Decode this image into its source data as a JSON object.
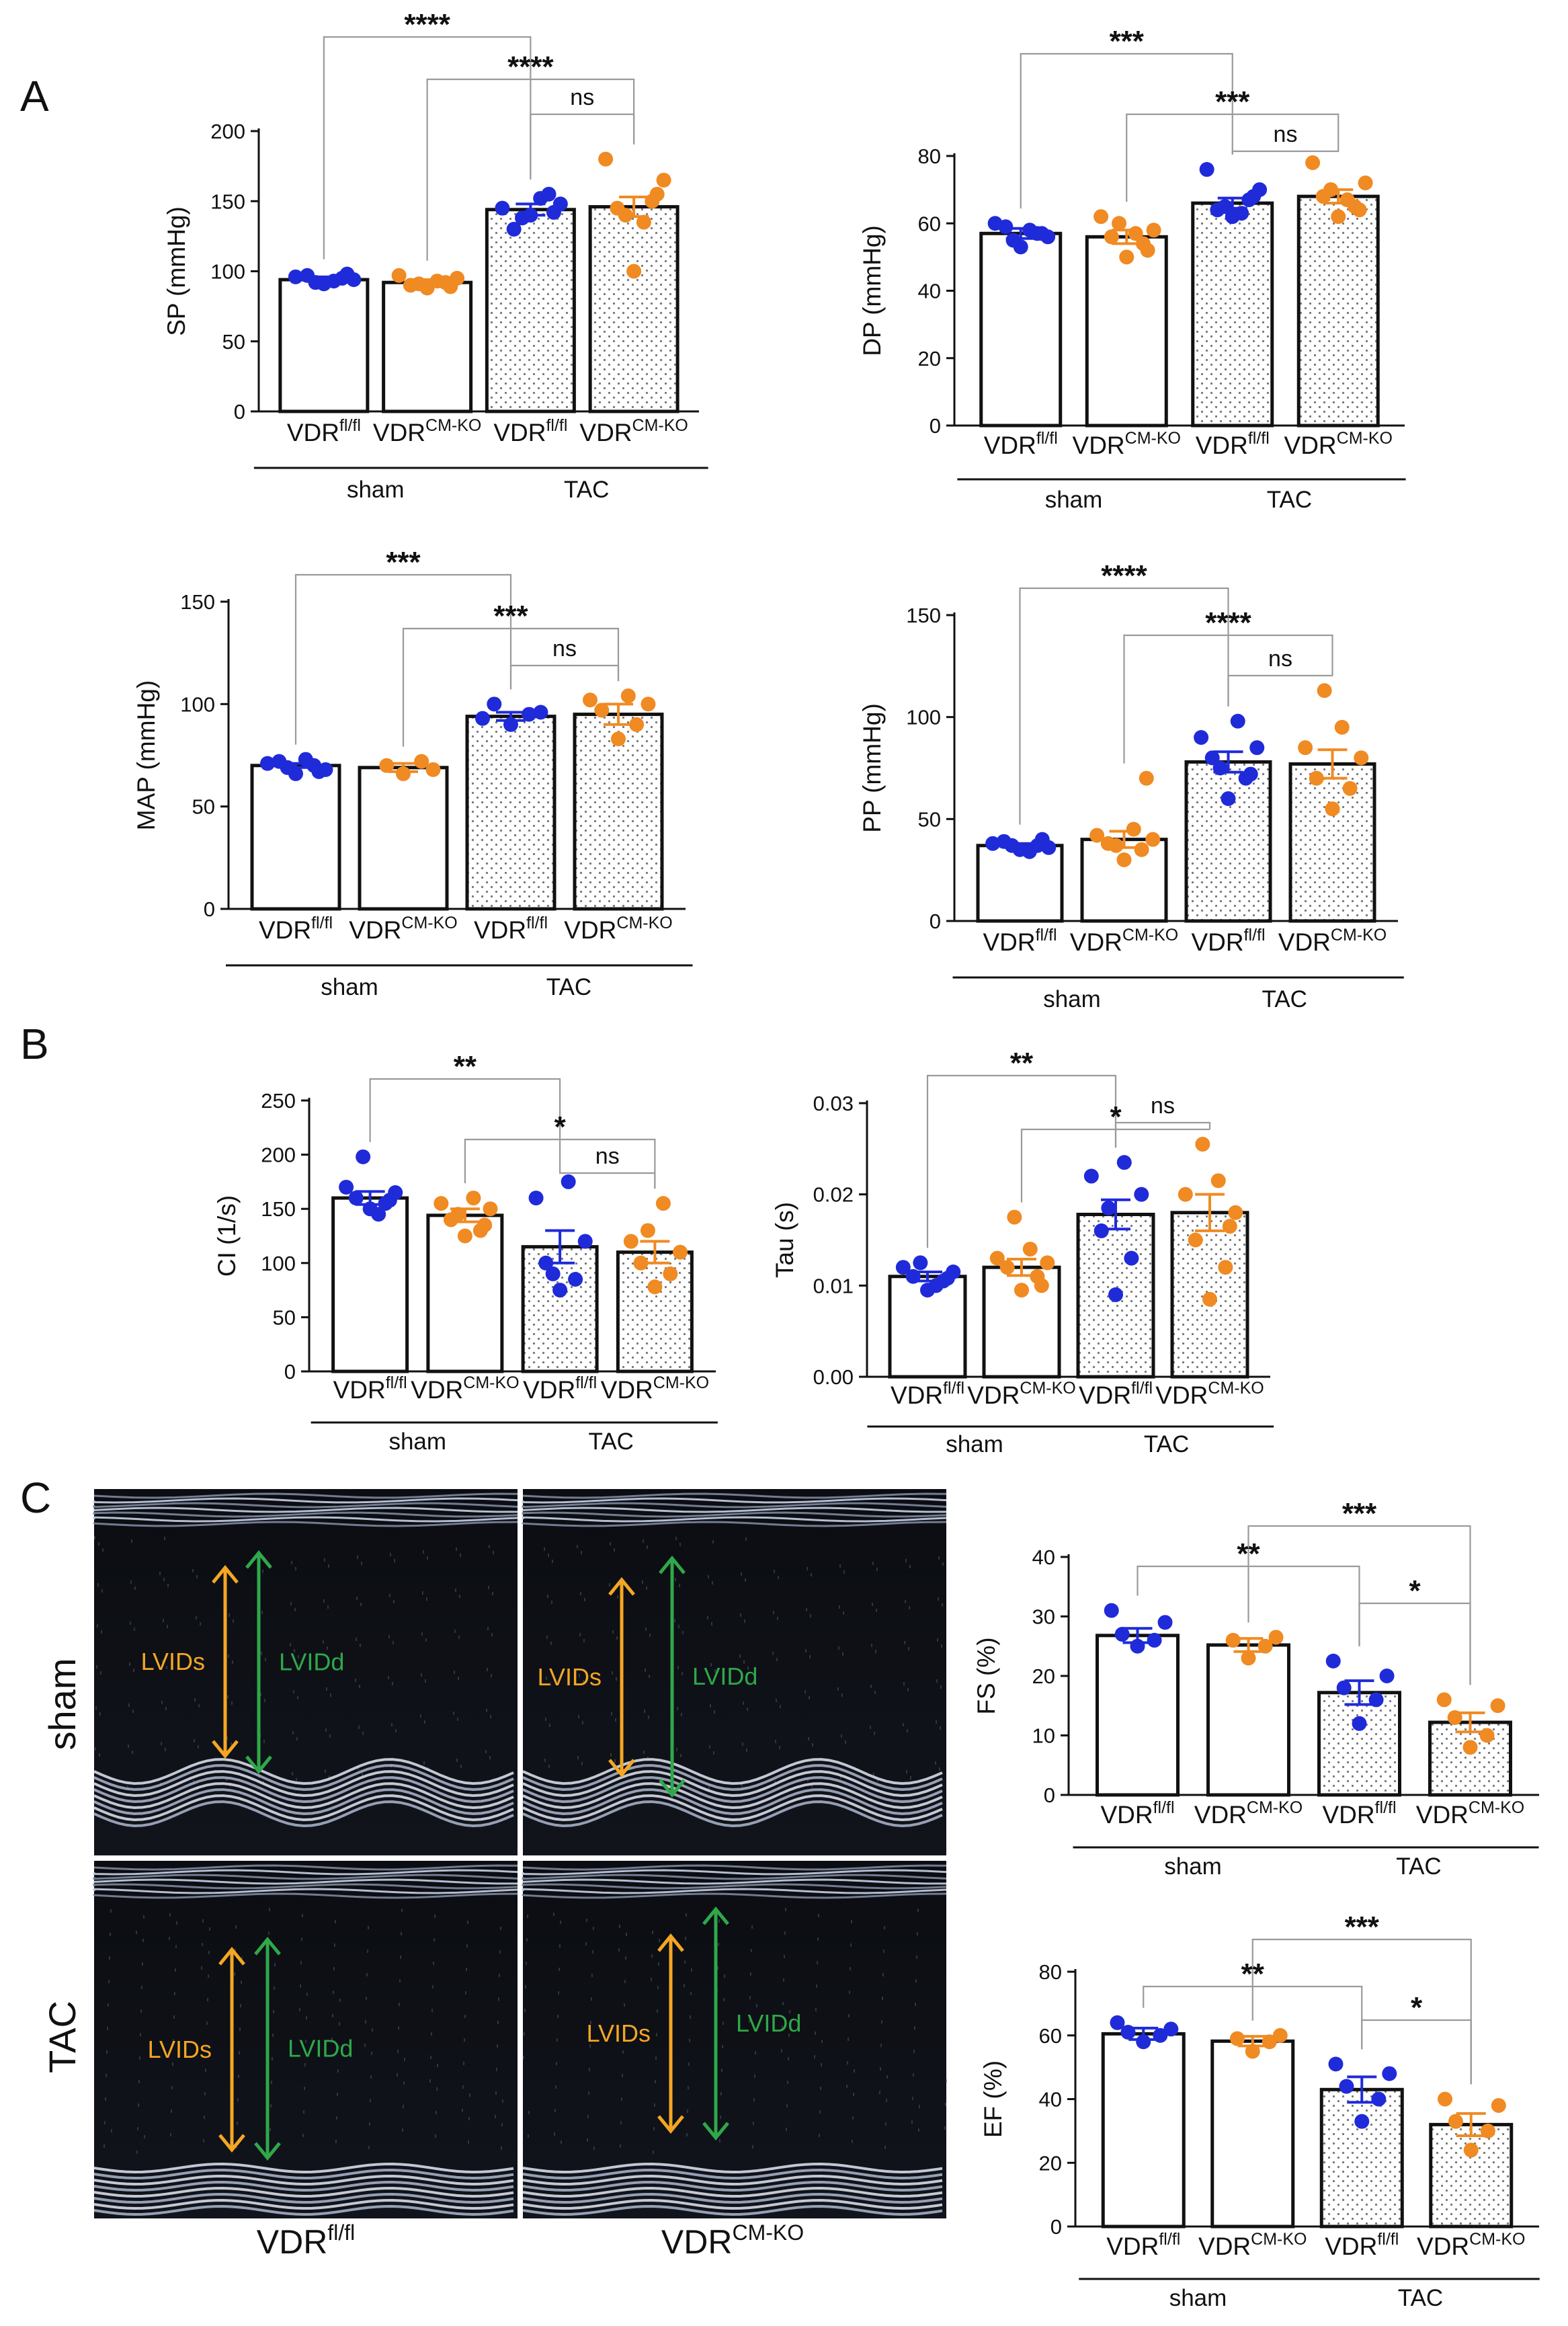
{
  "colors": {
    "wt": "#1f2bd8",
    "ko": "#f08a22",
    "bar": "#111111",
    "lvids": "#f5a623",
    "lvidd": "#2fa84a",
    "stipple": "#777777"
  },
  "panel_labels": {
    "A": "A",
    "B": "B",
    "C": "C"
  },
  "groups": {
    "wt_base": "VDR",
    "wt_sup": "fl/fl",
    "ko_base": "VDR",
    "ko_sup": "CM-KO",
    "sham": "sham",
    "tac": "TAC"
  },
  "echo": {
    "row_labels": [
      "sham",
      "TAC"
    ],
    "col_labels": [
      {
        "base": "VDR",
        "sup": "fl/fl"
      },
      {
        "base": "VDR",
        "sup": "CM-KO"
      }
    ],
    "lvids_label": "LVIDs",
    "lvidd_label": "LVIDd"
  },
  "chart_data": [
    {
      "id": "sp",
      "panel": "A",
      "type": "bar",
      "ylabel": "SP (mmHg)",
      "ylim": [
        0,
        200
      ],
      "ticks": [
        0,
        50,
        100,
        150,
        200
      ],
      "categories": [
        "VDR fl/fl sham",
        "VDR CM-KO sham",
        "VDR fl/fl TAC",
        "VDR CM-KO TAC"
      ],
      "means": [
        94,
        92,
        144,
        146
      ],
      "sem": [
        2,
        2,
        4,
        7
      ],
      "points": [
        [
          91,
          95,
          97,
          94,
          96,
          93,
          92,
          98
        ],
        [
          88,
          92,
          90,
          95,
          97,
          93,
          91,
          89
        ],
        [
          140,
          155,
          130,
          148,
          145,
          152,
          138,
          142
        ],
        [
          100,
          150,
          145,
          165,
          180,
          135,
          140,
          155
        ]
      ],
      "sig": [
        {
          "a": 0,
          "b": 2,
          "label": "****"
        },
        {
          "a": 1,
          "b": 3,
          "label": "****"
        },
        {
          "a": 2,
          "b": 3,
          "label": "ns"
        }
      ]
    },
    {
      "id": "dp",
      "panel": "A",
      "type": "bar",
      "ylabel": "DP (mmHg)",
      "ylim": [
        0,
        80
      ],
      "ticks": [
        0,
        20,
        40,
        60,
        80
      ],
      "categories": [
        "VDR fl/fl sham",
        "VDR CM-KO sham",
        "VDR fl/fl TAC",
        "VDR CM-KO TAC"
      ],
      "means": [
        57,
        56,
        66,
        68
      ],
      "sem": [
        1.5,
        2,
        1.5,
        2
      ],
      "points": [
        [
          53,
          57,
          59,
          56,
          60,
          58,
          55,
          57
        ],
        [
          50,
          54,
          56,
          58,
          62,
          57,
          60,
          52
        ],
        [
          62,
          67,
          64,
          70,
          76,
          63,
          65,
          68
        ],
        [
          62,
          65,
          68,
          72,
          78,
          67,
          70,
          64
        ]
      ],
      "sig": [
        {
          "a": 0,
          "b": 2,
          "label": "***"
        },
        {
          "a": 1,
          "b": 3,
          "label": "***"
        },
        {
          "a": 2,
          "b": 3,
          "label": "ns"
        }
      ]
    },
    {
      "id": "map",
      "panel": "A",
      "type": "bar",
      "ylabel": "MAP (mmHg)",
      "ylim": [
        0,
        150
      ],
      "ticks": [
        0,
        50,
        100,
        150
      ],
      "categories": [
        "VDR fl/fl sham",
        "VDR CM-KO sham",
        "VDR fl/fl TAC",
        "VDR CM-KO TAC"
      ],
      "means": [
        70,
        69,
        94,
        95
      ],
      "sem": [
        1,
        2,
        2,
        5
      ],
      "points": [
        [
          66,
          70,
          72,
          68,
          71,
          73,
          69,
          67
        ],
        [
          66,
          72,
          70,
          68
        ],
        [
          90,
          95,
          100,
          96,
          93
        ],
        [
          83,
          90,
          97,
          100,
          102,
          104
        ]
      ],
      "sig": [
        {
          "a": 0,
          "b": 2,
          "label": "***"
        },
        {
          "a": 1,
          "b": 3,
          "label": "***"
        },
        {
          "a": 2,
          "b": 3,
          "label": "ns"
        }
      ]
    },
    {
      "id": "pp",
      "panel": "A",
      "type": "bar",
      "ylabel": "PP (mmHg)",
      "ylim": [
        0,
        150
      ],
      "ticks": [
        0,
        50,
        100,
        150
      ],
      "categories": [
        "VDR fl/fl sham",
        "VDR CM-KO sham",
        "VDR fl/fl TAC",
        "VDR CM-KO TAC"
      ],
      "means": [
        37,
        40,
        78,
        77
      ],
      "sem": [
        1,
        4,
        5,
        7
      ],
      "points": [
        [
          35,
          37,
          39,
          36,
          38,
          34,
          37,
          40
        ],
        [
          30,
          35,
          38,
          40,
          42,
          45,
          37,
          70
        ],
        [
          60,
          70,
          80,
          85,
          90,
          98,
          75,
          72
        ],
        [
          55,
          65,
          70,
          80,
          85,
          95,
          113
        ]
      ],
      "sig": [
        {
          "a": 0,
          "b": 2,
          "label": "****"
        },
        {
          "a": 1,
          "b": 3,
          "label": "****"
        },
        {
          "a": 2,
          "b": 3,
          "label": "ns"
        }
      ]
    },
    {
      "id": "ci",
      "panel": "B",
      "type": "bar",
      "ylabel": "CI (1/s)",
      "ylim": [
        0,
        250
      ],
      "ticks": [
        0,
        50,
        100,
        150,
        200,
        250
      ],
      "categories": [
        "VDR fl/fl sham",
        "VDR CM-KO sham",
        "VDR fl/fl TAC",
        "VDR CM-KO TAC"
      ],
      "means": [
        160,
        144,
        115,
        110
      ],
      "sem": [
        6,
        6,
        15,
        10
      ],
      "points": [
        [
          150,
          155,
          160,
          165,
          170,
          145,
          198,
          158
        ],
        [
          125,
          130,
          140,
          150,
          155,
          160,
          145,
          135
        ],
        [
          75,
          85,
          100,
          120,
          160,
          175,
          90
        ],
        [
          78,
          90,
          100,
          110,
          120,
          155,
          130
        ]
      ],
      "sig": [
        {
          "a": 0,
          "b": 2,
          "label": "**"
        },
        {
          "a": 1,
          "b": 3,
          "label": "*"
        },
        {
          "a": 2,
          "b": 3,
          "label": "ns"
        }
      ]
    },
    {
      "id": "tau",
      "panel": "B",
      "type": "bar",
      "ylabel": "Tau (s)",
      "ylim": [
        0,
        0.03
      ],
      "ticks": [
        0,
        0.01,
        0.02,
        0.03
      ],
      "tick_labels": [
        "0.00",
        "0.01",
        "0.02",
        "0.03"
      ],
      "categories": [
        "VDR fl/fl sham",
        "VDR CM-KO sham",
        "VDR fl/fl TAC",
        "VDR CM-KO TAC"
      ],
      "means": [
        0.011,
        0.012,
        0.0178,
        0.018
      ],
      "sem": [
        0.0005,
        0.0009,
        0.0016,
        0.002
      ],
      "points": [
        [
          0.0095,
          0.0105,
          0.011,
          0.0115,
          0.012,
          0.01,
          0.0125,
          0.0108
        ],
        [
          0.0095,
          0.011,
          0.012,
          0.0125,
          0.013,
          0.014,
          0.0175,
          0.01
        ],
        [
          0.009,
          0.013,
          0.016,
          0.02,
          0.022,
          0.0235,
          0.0185
        ],
        [
          0.0085,
          0.012,
          0.015,
          0.018,
          0.02,
          0.0215,
          0.0255,
          0.0165
        ]
      ],
      "sig": [
        {
          "a": 0,
          "b": 2,
          "label": "**"
        },
        {
          "a": 1,
          "b": 3,
          "label": "*"
        },
        {
          "a": 2,
          "b": 3,
          "label": "ns"
        }
      ]
    },
    {
      "id": "fs",
      "panel": "C",
      "type": "bar",
      "ylabel": "FS (%)",
      "ylim": [
        0,
        40
      ],
      "ticks": [
        0,
        10,
        20,
        30,
        40
      ],
      "categories": [
        "VDR fl/fl sham",
        "VDR CM-KO sham",
        "VDR fl/fl TAC",
        "VDR CM-KO TAC"
      ],
      "means": [
        26.8,
        25.2,
        17.2,
        12.2
      ],
      "sem": [
        1.2,
        1.1,
        2,
        1.6
      ],
      "points": [
        [
          25,
          26,
          27,
          29,
          31
        ],
        [
          23,
          25,
          26,
          26.5
        ],
        [
          12,
          16,
          18,
          20,
          22.5
        ],
        [
          8,
          10,
          13,
          15,
          16
        ]
      ],
      "sig": [
        {
          "a": 1,
          "b": 3,
          "label": "***"
        },
        {
          "a": 0,
          "b": 2,
          "label": "**"
        },
        {
          "a": 2,
          "b": 3,
          "label": "*"
        }
      ]
    },
    {
      "id": "ef",
      "panel": "C",
      "type": "bar",
      "ylabel": "EF (%)",
      "ylim": [
        0,
        80
      ],
      "ticks": [
        0,
        20,
        40,
        60,
        80
      ],
      "categories": [
        "VDR fl/fl sham",
        "VDR CM-KO sham",
        "VDR fl/fl TAC",
        "VDR CM-KO TAC"
      ],
      "means": [
        60.5,
        58.2,
        43,
        32
      ],
      "sem": [
        1.8,
        1.5,
        4,
        3.5
      ],
      "points": [
        [
          58,
          60,
          61,
          62,
          64
        ],
        [
          55,
          58,
          59,
          60
        ],
        [
          33,
          40,
          44,
          48,
          51
        ],
        [
          24,
          30,
          33,
          38,
          40
        ]
      ],
      "sig": [
        {
          "a": 1,
          "b": 3,
          "label": "***"
        },
        {
          "a": 0,
          "b": 2,
          "label": "**"
        },
        {
          "a": 2,
          "b": 3,
          "label": "*"
        }
      ]
    }
  ]
}
